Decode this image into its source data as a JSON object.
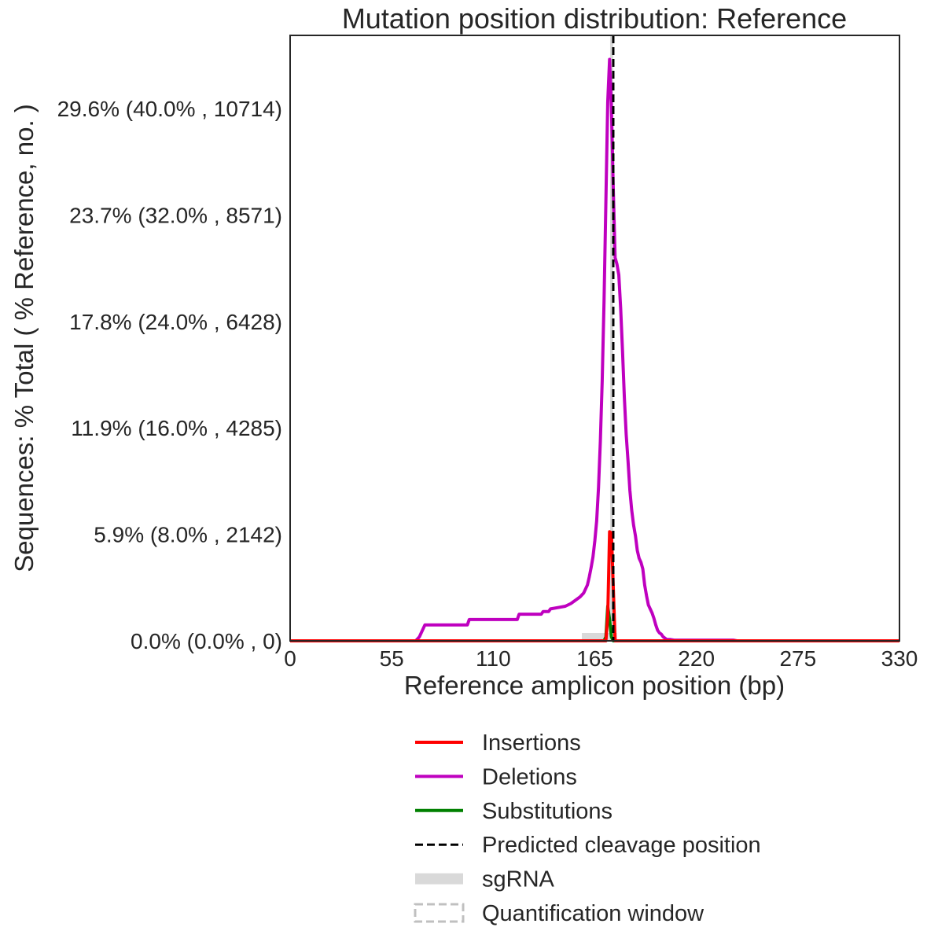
{
  "chart_data": {
    "type": "line",
    "title": "Mutation position distribution: Reference",
    "xlabel": "Reference amplicon position (bp)",
    "ylabel": "Sequences: % Total ( % Reference, no. )",
    "xlim": [
      0,
      330
    ],
    "ylim": [
      0,
      45.5
    ],
    "x_ticks": [
      0,
      55,
      110,
      165,
      220,
      275,
      330
    ],
    "y_ticks": [
      {
        "value": 0,
        "label": "0.0% (0.0% , 0)"
      },
      {
        "value": 8,
        "label": "5.9% (8.0% , 2142)"
      },
      {
        "value": 16,
        "label": "11.9% (16.0% , 4285)"
      },
      {
        "value": 24,
        "label": "17.8% (24.0% , 6428)"
      },
      {
        "value": 32,
        "label": "23.7% (32.0% , 8571)"
      },
      {
        "value": 40,
        "label": "29.6% (40.0% , 10714)"
      }
    ],
    "grid": false,
    "legend_position": "below",
    "colors": {
      "insertions": "#ff0000",
      "deletions": "#bf00bf",
      "substitutions": "#008000",
      "cleavage": "#000000",
      "sgrna": "#d9d9d9",
      "quant_window": "#c0c0c0"
    },
    "series": [
      {
        "name": "Insertions",
        "x": [
          0,
          171,
          172,
          173,
          174,
          176,
          177,
          330
        ],
        "y": [
          0,
          0,
          1.8,
          8.2,
          8.1,
          0,
          0,
          0
        ]
      },
      {
        "name": "Deletions",
        "x": [
          0,
          68,
          70,
          73,
          96,
          97,
          110,
          123,
          124,
          136,
          137,
          140,
          141,
          145,
          149,
          152,
          154,
          157,
          159,
          161,
          162,
          163,
          164,
          165,
          166,
          167,
          168,
          169,
          170,
          171,
          172,
          173,
          174,
          175,
          176,
          177,
          178,
          179,
          180,
          181,
          182,
          183,
          184,
          185,
          186,
          187,
          188,
          189,
          190,
          191,
          192,
          193,
          194,
          195,
          196,
          197,
          198,
          199,
          200,
          201,
          202,
          204,
          206,
          208,
          210,
          214,
          240,
          242,
          330
        ],
        "y": [
          0,
          0,
          0.3,
          1.2,
          1.2,
          1.6,
          1.6,
          1.6,
          2.0,
          2.0,
          2.2,
          2.2,
          2.4,
          2.5,
          2.6,
          2.8,
          3.0,
          3.3,
          3.6,
          4.2,
          4.8,
          5.5,
          6.3,
          7.5,
          9.0,
          11.5,
          15.0,
          19.5,
          25.5,
          33.0,
          40.5,
          43.7,
          40.0,
          34.0,
          28.8,
          28.3,
          27.5,
          25.0,
          21.8,
          18.3,
          15.5,
          13.5,
          11.3,
          9.8,
          8.7,
          7.9,
          6.8,
          6.2,
          5.9,
          5.4,
          4.2,
          3.4,
          2.7,
          2.4,
          2.1,
          1.7,
          1.2,
          0.8,
          0.6,
          0.5,
          0.3,
          0.1,
          0.1,
          0.05,
          0.05,
          0.05,
          0.05,
          0,
          0
        ]
      },
      {
        "name": "Substitutions",
        "x": [
          0,
          170,
          171,
          172,
          173,
          174,
          175,
          330
        ],
        "y": [
          0,
          0,
          0.3,
          2.6,
          1.6,
          0.3,
          0,
          0
        ]
      }
    ],
    "cleavage_position": 175,
    "sgrna_range": [
      158,
      177
    ],
    "legend": [
      {
        "key": "insertions",
        "label": "Insertions",
        "style": "solid"
      },
      {
        "key": "deletions",
        "label": "Deletions",
        "style": "solid"
      },
      {
        "key": "substitutions",
        "label": "Substitutions",
        "style": "solid"
      },
      {
        "key": "cleavage",
        "label": "Predicted cleavage position",
        "style": "dashed"
      },
      {
        "key": "sgrna",
        "label": "sgRNA",
        "style": "thick"
      },
      {
        "key": "quant_window",
        "label": "Quantification window",
        "style": "dashed-box"
      }
    ]
  }
}
